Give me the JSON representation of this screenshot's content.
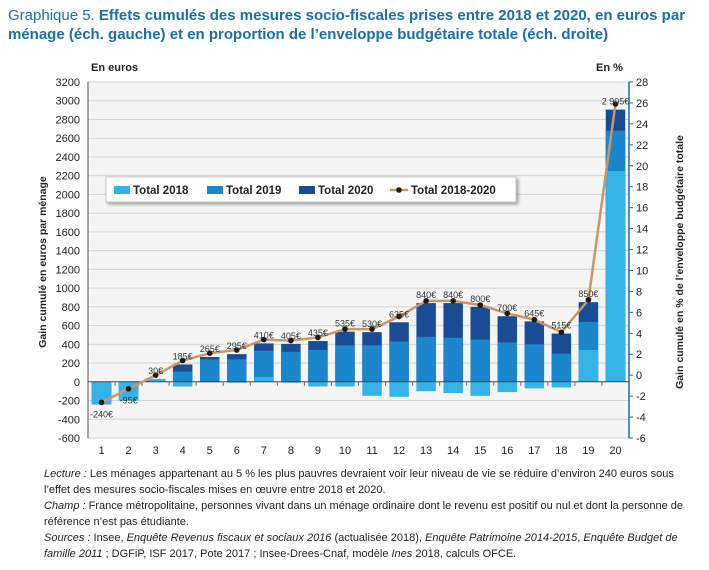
{
  "header": {
    "label": "Graphique 5.",
    "title": "Effets cumulés des mesures socio-fiscales prises entre 2018 et 2020, en euros par ménage (éch. gauche) et en proportion de l’enveloppe budgétaire totale (éch. droite)"
  },
  "colors": {
    "total_2018": "#36b3e6",
    "total_2019": "#1b86cc",
    "total_2020": "#1a4c96",
    "line": "#c8986a",
    "marker": "#1a1a1a",
    "axis_right": "#1b6fa8"
  },
  "chart_data": {
    "type": "bar",
    "categories": [
      "1",
      "2",
      "3",
      "4",
      "5",
      "6",
      "7",
      "8",
      "9",
      "10",
      "11",
      "12",
      "13",
      "14",
      "15",
      "16",
      "17",
      "18",
      "19",
      "20"
    ],
    "ylabel": "Gain cumulé en euros par ménage",
    "y_unit": "En euros",
    "ylim": [
      -600,
      3200
    ],
    "yticks": [
      -600,
      -400,
      -200,
      0,
      200,
      400,
      600,
      800,
      1000,
      1200,
      1400,
      1600,
      1800,
      2000,
      2200,
      2400,
      2600,
      2800,
      3000,
      3200
    ],
    "y2label": "Gain cumulé en % de l’enveloppe budgétaire totale",
    "y2_unit": "En %",
    "y2lim": [
      -6,
      28
    ],
    "y2ticks": [
      -6,
      -4,
      -2,
      0,
      2,
      4,
      6,
      8,
      10,
      12,
      14,
      16,
      18,
      20,
      22,
      24,
      26,
      28
    ],
    "legend_position": "upper-left",
    "series": [
      {
        "name": "Total 2018",
        "type": "bar",
        "values": [
          -240,
          -200,
          30,
          -50,
          0,
          -10,
          50,
          -10,
          -50,
          -50,
          -150,
          -160,
          -100,
          -120,
          -150,
          -110,
          -70,
          -60,
          340,
          2250
        ]
      },
      {
        "name": "Total 2019",
        "type": "bar",
        "values": [
          -240,
          -190,
          30,
          110,
          240,
          240,
          330,
          320,
          340,
          390,
          390,
          430,
          480,
          470,
          450,
          420,
          400,
          300,
          640,
          2680
        ]
      },
      {
        "name": "Total 2020",
        "type": "bar",
        "values": [
          -240,
          -95,
          30,
          185,
          265,
          295,
          410,
          405,
          435,
          535,
          530,
          635,
          840,
          840,
          800,
          700,
          645,
          515,
          850,
          2905
        ]
      },
      {
        "name": "Total 2018-2020",
        "type": "line",
        "axis": "right",
        "values": [
          -2.6,
          -1.3,
          0.0,
          1.4,
          2.1,
          2.4,
          3.4,
          3.3,
          3.6,
          4.4,
          4.4,
          5.6,
          7.1,
          7.1,
          6.7,
          5.9,
          5.3,
          4.1,
          7.2,
          25.9
        ]
      }
    ],
    "data_labels": [
      "-240€",
      "-95€",
      "30€",
      "185€",
      "265€",
      "295€",
      "410€",
      "405€",
      "435€",
      "535€",
      "530€",
      "635€",
      "840€",
      "840€",
      "800€",
      "700€",
      "645€",
      "515€",
      "850€",
      "2 905€"
    ]
  },
  "notes": {
    "lecture_label": "Lecture :",
    "lecture_text": "Les ménages appartenant au 5 % les plus pauvres devraient voir leur niveau de vie se réduire d’environ 240 euros sous l’effet des mesures socio-fiscales mises en œuvre entre 2018 et 2020.",
    "champ_label": "Champ :",
    "champ_text": "France métropolitaine, personnes vivant dans un ménage ordinaire dont le revenu est positif ou nul et dont la personne de référence n’est pas étudiante.",
    "sources_label": "Sources :",
    "sources_parts": [
      "Insee, ",
      "Enquête Revenus fiscaux et sociaux 2016",
      " (actualisée 2018), ",
      "Enquête Patrimoine 2014-2015",
      ", ",
      "Enquête Budget de famille 2011",
      " ; DGFiP, ISF 2017, Pote 2017 ; Insee-Drees-Cnaf, modèle ",
      "Ines",
      " 2018, calculs OFCE."
    ]
  }
}
